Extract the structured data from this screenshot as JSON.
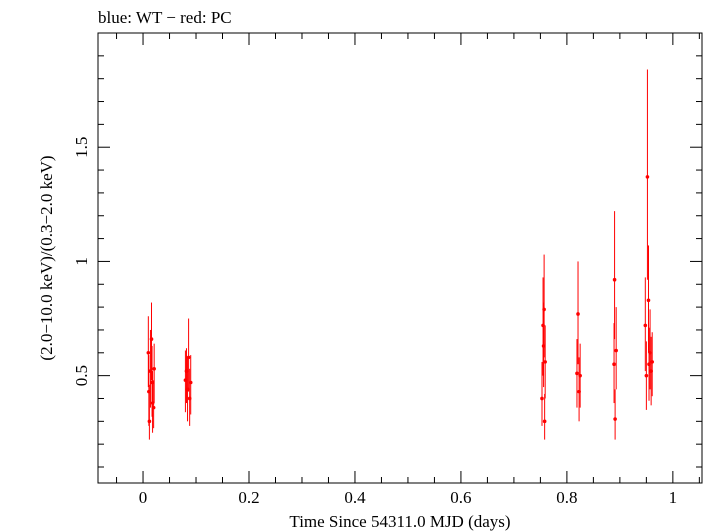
{
  "chart_data": {
    "type": "scatter",
    "title": "blue: WT − red: PC",
    "xlabel": "Time Since 54311.0 MJD (days)",
    "ylabel": "(2.0−10.0 keV)/(0.3−2.0 keV)",
    "xlim": [
      -0.085,
      1.055
    ],
    "ylim": [
      0.03,
      2.0
    ],
    "x_ticks": [
      0,
      0.2,
      0.4,
      0.6,
      0.8,
      1
    ],
    "x_tick_labels": [
      "0",
      "0.2",
      "0.4",
      "0.6",
      "0.8",
      "1"
    ],
    "y_ticks": [
      0.5,
      1,
      1.5
    ],
    "y_tick_labels": [
      "0.5",
      "1",
      "1.5"
    ],
    "grid": false,
    "series": [
      {
        "color": "#ff0000",
        "points": [
          {
            "x": 0.01,
            "y": 0.6,
            "ylo": 0.45,
            "yhi": 0.76
          },
          {
            "x": 0.011,
            "y": 0.43,
            "ylo": 0.28,
            "yhi": 0.59
          },
          {
            "x": 0.012,
            "y": 0.3,
            "ylo": 0.22,
            "yhi": 0.46
          },
          {
            "x": 0.014,
            "y": 0.52,
            "ylo": 0.36,
            "yhi": 0.7
          },
          {
            "x": 0.016,
            "y": 0.66,
            "ylo": 0.48,
            "yhi": 0.82
          },
          {
            "x": 0.017,
            "y": 0.47,
            "ylo": 0.32,
            "yhi": 0.63
          },
          {
            "x": 0.018,
            "y": 0.38,
            "ylo": 0.25,
            "yhi": 0.52
          },
          {
            "x": 0.02,
            "y": 0.36,
            "ylo": 0.27,
            "yhi": 0.48
          },
          {
            "x": 0.021,
            "y": 0.53,
            "ylo": 0.38,
            "yhi": 0.64
          },
          {
            "x": 0.08,
            "y": 0.48,
            "ylo": 0.34,
            "yhi": 0.61
          },
          {
            "x": 0.082,
            "y": 0.52,
            "ylo": 0.38,
            "yhi": 0.62
          },
          {
            "x": 0.084,
            "y": 0.44,
            "ylo": 0.3,
            "yhi": 0.58
          },
          {
            "x": 0.086,
            "y": 0.58,
            "ylo": 0.43,
            "yhi": 0.75
          },
          {
            "x": 0.088,
            "y": 0.4,
            "ylo": 0.28,
            "yhi": 0.53
          },
          {
            "x": 0.09,
            "y": 0.47,
            "ylo": 0.33,
            "yhi": 0.59
          },
          {
            "x": 0.753,
            "y": 0.4,
            "ylo": 0.28,
            "yhi": 0.56
          },
          {
            "x": 0.755,
            "y": 0.72,
            "ylo": 0.5,
            "yhi": 0.93
          },
          {
            "x": 0.756,
            "y": 0.63,
            "ylo": 0.45,
            "yhi": 0.82
          },
          {
            "x": 0.757,
            "y": 0.79,
            "ylo": 0.58,
            "yhi": 1.03
          },
          {
            "x": 0.758,
            "y": 0.3,
            "ylo": 0.22,
            "yhi": 0.42
          },
          {
            "x": 0.759,
            "y": 0.56,
            "ylo": 0.4,
            "yhi": 0.72
          },
          {
            "x": 0.819,
            "y": 0.51,
            "ylo": 0.36,
            "yhi": 0.66
          },
          {
            "x": 0.821,
            "y": 0.77,
            "ylo": 0.55,
            "yhi": 1.0
          },
          {
            "x": 0.823,
            "y": 0.43,
            "ylo": 0.3,
            "yhi": 0.58
          },
          {
            "x": 0.825,
            "y": 0.5,
            "ylo": 0.36,
            "yhi": 0.64
          },
          {
            "x": 0.889,
            "y": 0.55,
            "ylo": 0.38,
            "yhi": 0.73
          },
          {
            "x": 0.89,
            "y": 0.92,
            "ylo": 0.66,
            "yhi": 1.22
          },
          {
            "x": 0.891,
            "y": 0.31,
            "ylo": 0.22,
            "yhi": 0.44
          },
          {
            "x": 0.893,
            "y": 0.61,
            "ylo": 0.44,
            "yhi": 0.8
          },
          {
            "x": 0.948,
            "y": 0.72,
            "ylo": 0.52,
            "yhi": 0.93
          },
          {
            "x": 0.95,
            "y": 0.5,
            "ylo": 0.35,
            "yhi": 0.65
          },
          {
            "x": 0.952,
            "y": 1.37,
            "ylo": 0.92,
            "yhi": 1.84
          },
          {
            "x": 0.954,
            "y": 0.83,
            "ylo": 0.6,
            "yhi": 1.07
          },
          {
            "x": 0.955,
            "y": 0.55,
            "ylo": 0.39,
            "yhi": 0.71
          },
          {
            "x": 0.957,
            "y": 0.6,
            "ylo": 0.44,
            "yhi": 0.79
          },
          {
            "x": 0.959,
            "y": 0.52,
            "ylo": 0.37,
            "yhi": 0.67
          },
          {
            "x": 0.961,
            "y": 0.56,
            "ylo": 0.41,
            "yhi": 0.69
          }
        ]
      }
    ]
  }
}
